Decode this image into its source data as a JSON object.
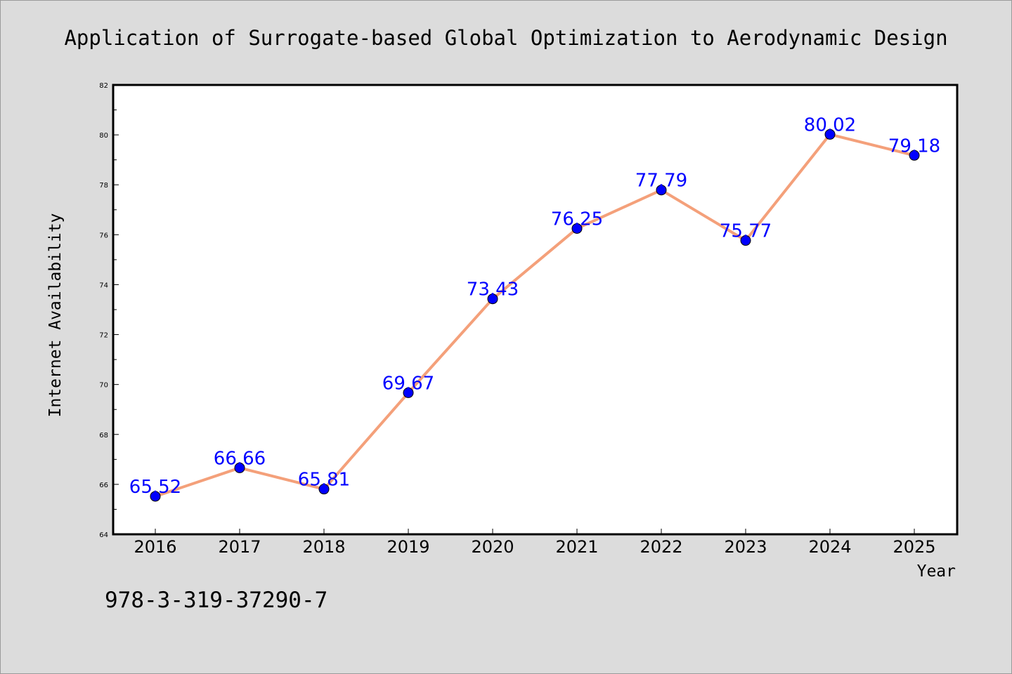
{
  "chart_data": {
    "type": "line",
    "title": "Application of Surrogate-based Global Optimization to Aerodynamic Design",
    "xlabel": "Year",
    "ylabel": "Internet Availability",
    "categories": [
      "2016",
      "2017",
      "2018",
      "2019",
      "2020",
      "2021",
      "2022",
      "2023",
      "2024",
      "2025"
    ],
    "values": [
      65.52,
      66.66,
      65.81,
      69.67,
      73.43,
      76.25,
      77.79,
      75.77,
      80.02,
      79.18
    ],
    "value_labels": [
      "65.52",
      "66.66",
      "65.81",
      "69.67",
      "73.43",
      "76.25",
      "77.79",
      "75.77",
      "80.02",
      "79.18"
    ],
    "ylim": [
      64,
      82
    ],
    "y_ticks": [
      "64",
      "66",
      "68",
      "70",
      "72",
      "74",
      "76",
      "78",
      "80",
      "82"
    ],
    "grid": false,
    "legend": "none",
    "line_color": "#f4a07a",
    "marker_color": "#0000ff",
    "label_color": "#0000ff",
    "background_color": "#dcdcdc",
    "plot_background": "#ffffff"
  },
  "footer": {
    "isbn": "978-3-319-37290-7"
  }
}
